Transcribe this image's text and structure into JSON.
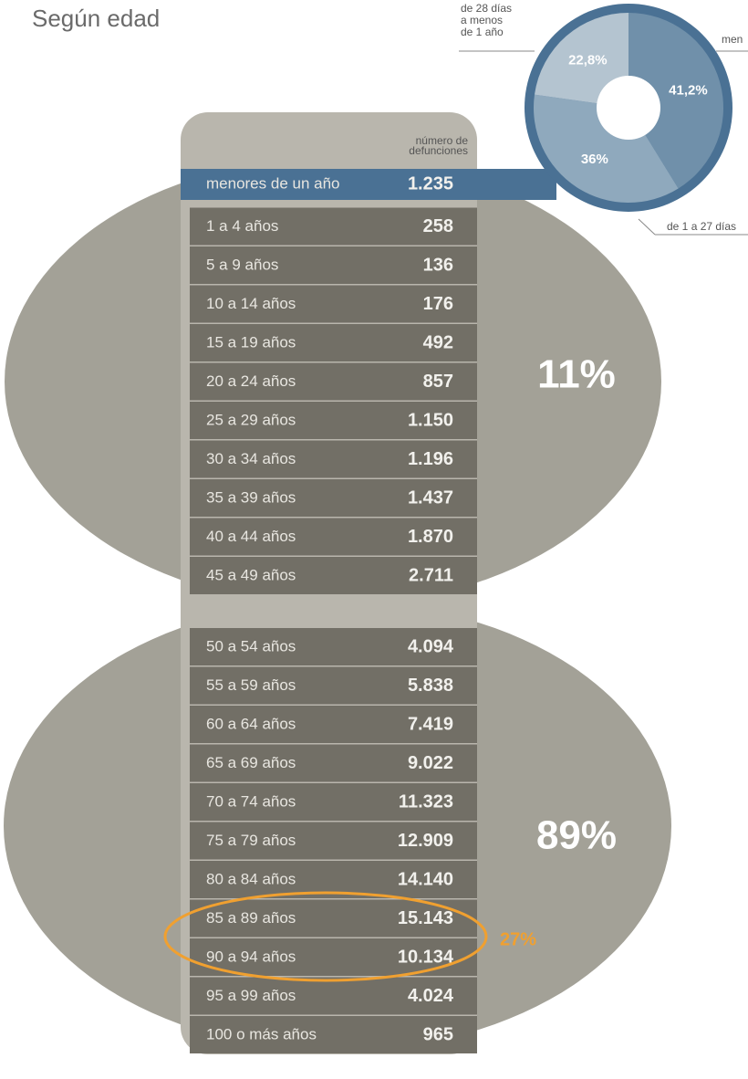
{
  "title": "Según edad",
  "table": {
    "header": [
      "número de",
      "defunciones"
    ],
    "rows": [
      [
        "menores de un año",
        "1.235"
      ],
      [
        "1 a 4 años",
        "258"
      ],
      [
        "5 a 9 años",
        "136"
      ],
      [
        "10 a 14 años",
        "176"
      ],
      [
        "15 a 19 años",
        "492"
      ],
      [
        "20 a 24 años",
        "857"
      ],
      [
        "25 a 29 años",
        "1.150"
      ],
      [
        "30 a 34 años",
        "1.196"
      ],
      [
        "35 a 39 años",
        "1.437"
      ],
      [
        "40 a 44 años",
        "1.870"
      ],
      [
        "45 a 49 años",
        "2.711"
      ],
      [
        "50 a 54 años",
        "4.094"
      ],
      [
        "55 a 59 años",
        "5.838"
      ],
      [
        "60 a 64 años",
        "7.419"
      ],
      [
        "65 a 69 años",
        "9.022"
      ],
      [
        "70 a 74 años",
        "11.323"
      ],
      [
        "75 a 79 años",
        "12.909"
      ],
      [
        "80 a 84 años",
        "14.140"
      ],
      [
        "85 a 89 años",
        "15.143"
      ],
      [
        "90 a 94 años",
        "10.134"
      ],
      [
        "95 a 99 años",
        "4.024"
      ],
      [
        "100 o más años",
        "965"
      ]
    ]
  },
  "groups": [
    "11%",
    "89%"
  ],
  "highlight": "27%",
  "chart_data": {
    "type": "pie",
    "categories": [
      [
        "men"
      ],
      [
        "de 1 a 27 días"
      ],
      [
        "de 28 días",
        "a menos",
        "de 1 año"
      ]
    ],
    "values": [
      41.2,
      36,
      22.8
    ],
    "value_labels": [
      "41,2%",
      "36%",
      "22,8%"
    ],
    "colors": [
      "#7090aa",
      "#8fa9bd",
      "#b4c4d0"
    ]
  }
}
